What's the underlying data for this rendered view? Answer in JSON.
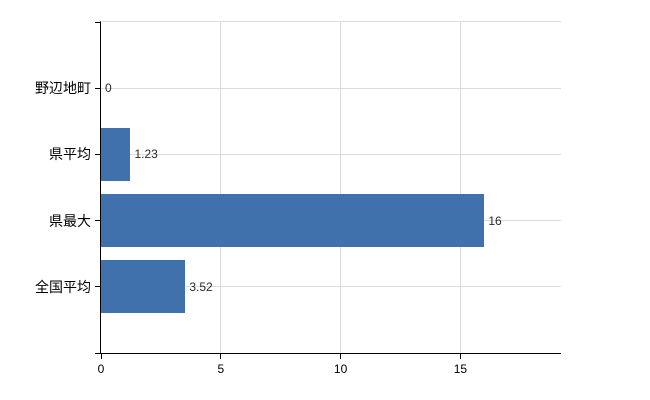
{
  "chart": {
    "background": "#ffffff"
  },
  "chart_data": {
    "type": "bar",
    "orientation": "horizontal",
    "title": "",
    "xlabel": "",
    "ylabel": "",
    "categories": [
      "野辺地町",
      "県平均",
      "県最大",
      "全国平均"
    ],
    "values": [
      0,
      1.23,
      16,
      3.52
    ],
    "value_labels": [
      "0",
      "1.23",
      "16",
      "3.52"
    ],
    "x_ticks": [
      0,
      5,
      10,
      15
    ],
    "x_tick_labels": [
      "0",
      "5",
      "10",
      "15"
    ],
    "xlim": [
      0,
      19.2
    ],
    "grid": true,
    "legend": "none"
  },
  "colors": {
    "bar": "#4171ad",
    "grid": "#dcdcdc",
    "axis": "#000000",
    "category_text": "#000000",
    "tick_text": "#000000",
    "value_text": "#2b2b2b"
  }
}
